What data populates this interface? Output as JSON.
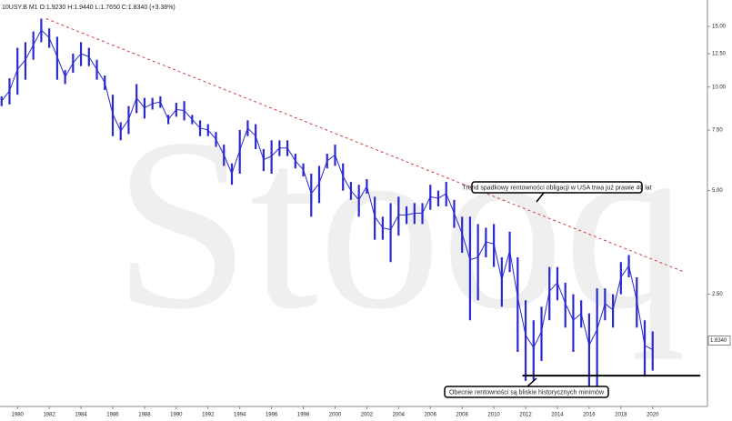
{
  "chart_data": {
    "type": "ohlc-range",
    "header": "10USY.B  M1  O:1.9230  H:1.9440  L:1.7650  C:1.8340  (+3.38%)",
    "watermark": "Stooq",
    "color": "#2a2ad0",
    "x": [
      1979.0,
      1979.5,
      1980.0,
      1980.5,
      1981.0,
      1981.5,
      1982.0,
      1982.5,
      1983.0,
      1983.5,
      1984.0,
      1984.5,
      1985.0,
      1985.5,
      1986.0,
      1986.5,
      1987.0,
      1987.5,
      1988.0,
      1988.5,
      1989.0,
      1989.5,
      1990.0,
      1990.5,
      1991.0,
      1991.5,
      1992.0,
      1992.5,
      1993.0,
      1993.5,
      1994.0,
      1994.5,
      1995.0,
      1995.5,
      1996.0,
      1996.5,
      1997.0,
      1997.5,
      1998.0,
      1998.5,
      1999.0,
      1999.5,
      2000.0,
      2000.5,
      2001.0,
      2001.5,
      2002.0,
      2002.5,
      2003.0,
      2003.5,
      2004.0,
      2004.5,
      2005.0,
      2005.5,
      2006.0,
      2006.5,
      2007.0,
      2007.5,
      2008.0,
      2008.5,
      2009.0,
      2009.5,
      2010.0,
      2010.5,
      2011.0,
      2011.5,
      2012.0,
      2012.5,
      2013.0,
      2013.5,
      2014.0,
      2014.5,
      2015.0,
      2015.5,
      2016.0,
      2016.5,
      2017.0,
      2017.5,
      2018.0,
      2018.5,
      2019.0,
      2019.5,
      2020.0
    ],
    "low": [
      8.8,
      8.9,
      9.5,
      10.5,
      12,
      13.5,
      13,
      10.5,
      10.2,
      11,
      11.5,
      11.5,
      10.5,
      9.8,
      7.2,
      7.0,
      7.3,
      8.4,
      8.1,
      8.6,
      8.7,
      7.8,
      8.2,
      8.0,
      7.8,
      7.2,
      7.2,
      6.7,
      5.9,
      5.2,
      5.6,
      7.2,
      6.6,
      5.7,
      5.6,
      6.3,
      6.3,
      5.8,
      5.5,
      4.2,
      4.6,
      5.8,
      5.9,
      5.0,
      4.7,
      4.2,
      4.9,
      3.6,
      3.6,
      3.1,
      3.7,
      4.0,
      4.0,
      4.0,
      4.4,
      4.5,
      4.5,
      3.9,
      3.3,
      2.1,
      2.4,
      3.2,
      3.0,
      2.3,
      2.9,
      1.7,
      1.4,
      1.4,
      1.6,
      2.1,
      2.4,
      2.0,
      1.7,
      2.0,
      1.35,
      1.35,
      2.1,
      2.0,
      2.5,
      2.8,
      2.0,
      1.45,
      1.5
    ],
    "high": [
      9.4,
      10.6,
      13,
      13.5,
      14.5,
      15.8,
      14.8,
      14,
      11.2,
      12.5,
      13.5,
      13,
      12,
      10.8,
      9.5,
      7.9,
      8.8,
      10.2,
      9.3,
      9.3,
      9.4,
      8.3,
      9.0,
      9.1,
      8.3,
      8.0,
      7.8,
      7.4,
      6.8,
      6.0,
      7.5,
      8.0,
      7.8,
      6.6,
      7.0,
      7.0,
      7.0,
      6.4,
      6.0,
      5.6,
      5.9,
      6.4,
      6.8,
      6.0,
      5.3,
      5.2,
      5.4,
      4.8,
      4.2,
      4.6,
      4.8,
      4.5,
      4.6,
      4.6,
      5.2,
      5.0,
      5.3,
      4.7,
      4.2,
      4.2,
      4.0,
      3.9,
      4.0,
      3.2,
      3.8,
      3.2,
      2.4,
      2.1,
      2.3,
      3.0,
      3.0,
      2.7,
      2.5,
      2.4,
      2.2,
      2.6,
      2.6,
      2.5,
      3.1,
      3.25,
      2.8,
      2.1,
      1.95
    ],
    "xlim": [
      1978.9,
      2023.45
    ],
    "xticks": [
      1980,
      1982,
      1984,
      1986,
      1988,
      1990,
      1992,
      1994,
      1996,
      1998,
      2000,
      2002,
      2004,
      2006,
      2008,
      2010,
      2012,
      2014,
      2016,
      2018,
      2020
    ],
    "ylim": [
      1.18,
      17.9
    ],
    "log_scale": true,
    "yticks": [
      {
        "value": 2.5,
        "label": "2.50"
      },
      {
        "value": 5,
        "label": "5.00"
      },
      {
        "value": 7.5,
        "label": "7.50"
      },
      {
        "value": 10,
        "label": "10.00"
      },
      {
        "value": 12.5,
        "label": "12.50"
      },
      {
        "value": 15,
        "label": "15.00"
      }
    ],
    "last_price": {
      "value": 1.834,
      "label": "1.8340"
    },
    "trendline": {
      "x": [
        1981.8,
        2022.0
      ],
      "y": [
        15.8,
        2.9
      ],
      "color": "#d04040"
    },
    "support": {
      "x": [
        2011.8,
        2023.0
      ],
      "y": [
        1.45,
        1.45
      ],
      "color": "#000000"
    },
    "annotations": [
      "Trend spadkowy rentowności obligacji w USA trwa już prawie 40 lat",
      "Obecnie rentowności są bliskie historycznych minimów"
    ]
  }
}
